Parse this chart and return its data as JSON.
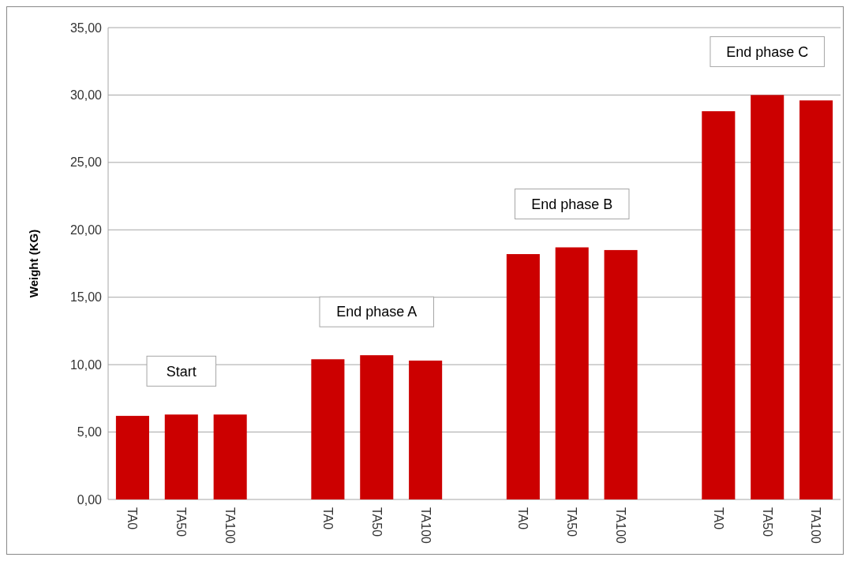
{
  "chart_data": {
    "type": "bar",
    "ylabel": "Weight  (KG)",
    "categories": [
      "TA0",
      "TA50",
      "TA100",
      null,
      "TA0",
      "TA50",
      "TA100",
      null,
      "TA0",
      "TA50",
      "TA100",
      null,
      "TA0",
      "TA50",
      "TA100"
    ],
    "values": [
      6.2,
      6.3,
      6.3,
      null,
      10.4,
      10.7,
      10.3,
      null,
      18.2,
      18.7,
      18.5,
      null,
      28.8,
      30.0,
      29.6
    ],
    "color": "#cc0000",
    "ylim": [
      0,
      35
    ],
    "yticks": [
      {
        "value": 0,
        "label": "0,00"
      },
      {
        "value": 5,
        "label": "5,00"
      },
      {
        "value": 10,
        "label": "10,00"
      },
      {
        "value": 15,
        "label": "15,00"
      },
      {
        "value": 20,
        "label": "20,00"
      },
      {
        "value": 25,
        "label": "25,00"
      },
      {
        "value": 30,
        "label": "30,00"
      },
      {
        "value": 35,
        "label": "35,00"
      }
    ],
    "grid": "y",
    "annotations": [
      "Start",
      "End phase A",
      "End phase B",
      "End phase C"
    ]
  }
}
